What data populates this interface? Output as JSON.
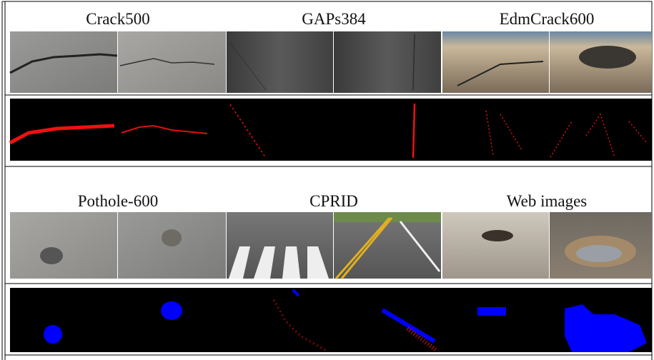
{
  "panels": [
    {
      "label": "Crack500"
    },
    {
      "label": "GAPs384"
    },
    {
      "label": "EdmCrack600"
    },
    {
      "label": "Pothole-600"
    },
    {
      "label": "CPRID"
    },
    {
      "label": "Web images"
    }
  ]
}
